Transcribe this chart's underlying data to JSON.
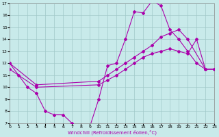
{
  "xlabel": "Windchill (Refroidissement éolien,°C)",
  "xlim": [
    0,
    23
  ],
  "ylim": [
    7,
    17
  ],
  "xticks": [
    0,
    1,
    2,
    3,
    4,
    5,
    6,
    7,
    8,
    9,
    10,
    11,
    12,
    13,
    14,
    15,
    16,
    17,
    18,
    19,
    20,
    21,
    22,
    23
  ],
  "yticks": [
    7,
    8,
    9,
    10,
    11,
    12,
    13,
    14,
    15,
    16,
    17
  ],
  "background_color": "#c8eaea",
  "grid_color": "#a0c8c8",
  "line_color": "#aa00aa",
  "curve1_x": [
    0,
    1,
    2,
    3,
    4,
    5,
    6,
    7,
    8,
    9,
    10,
    11,
    12,
    13,
    14,
    15,
    16,
    17,
    18,
    19,
    20,
    21,
    22
  ],
  "curve1_y": [
    12.0,
    11.0,
    10.0,
    9.5,
    8.0,
    7.7,
    7.7,
    7.0,
    6.8,
    6.7,
    9.0,
    11.8,
    12.0,
    14.0,
    16.3,
    16.2,
    17.2,
    16.8,
    14.8,
    14.0,
    13.0,
    12.0,
    11.5
  ],
  "curve2_x": [
    0,
    3,
    10,
    11,
    12,
    13,
    14,
    15,
    16,
    17,
    18,
    19,
    20,
    22,
    23
  ],
  "curve2_y": [
    12.0,
    10.2,
    10.5,
    11.0,
    11.5,
    12.0,
    12.5,
    13.0,
    13.5,
    14.2,
    14.5,
    14.8,
    14.0,
    11.5,
    11.5
  ],
  "curve3_x": [
    0,
    3,
    10,
    11,
    12,
    13,
    14,
    15,
    16,
    17,
    18,
    19,
    20,
    21,
    22,
    23
  ],
  "curve3_y": [
    11.5,
    10.0,
    10.2,
    10.6,
    11.0,
    11.5,
    12.0,
    12.5,
    12.8,
    13.0,
    13.2,
    13.0,
    12.8,
    14.0,
    11.5,
    11.5
  ]
}
